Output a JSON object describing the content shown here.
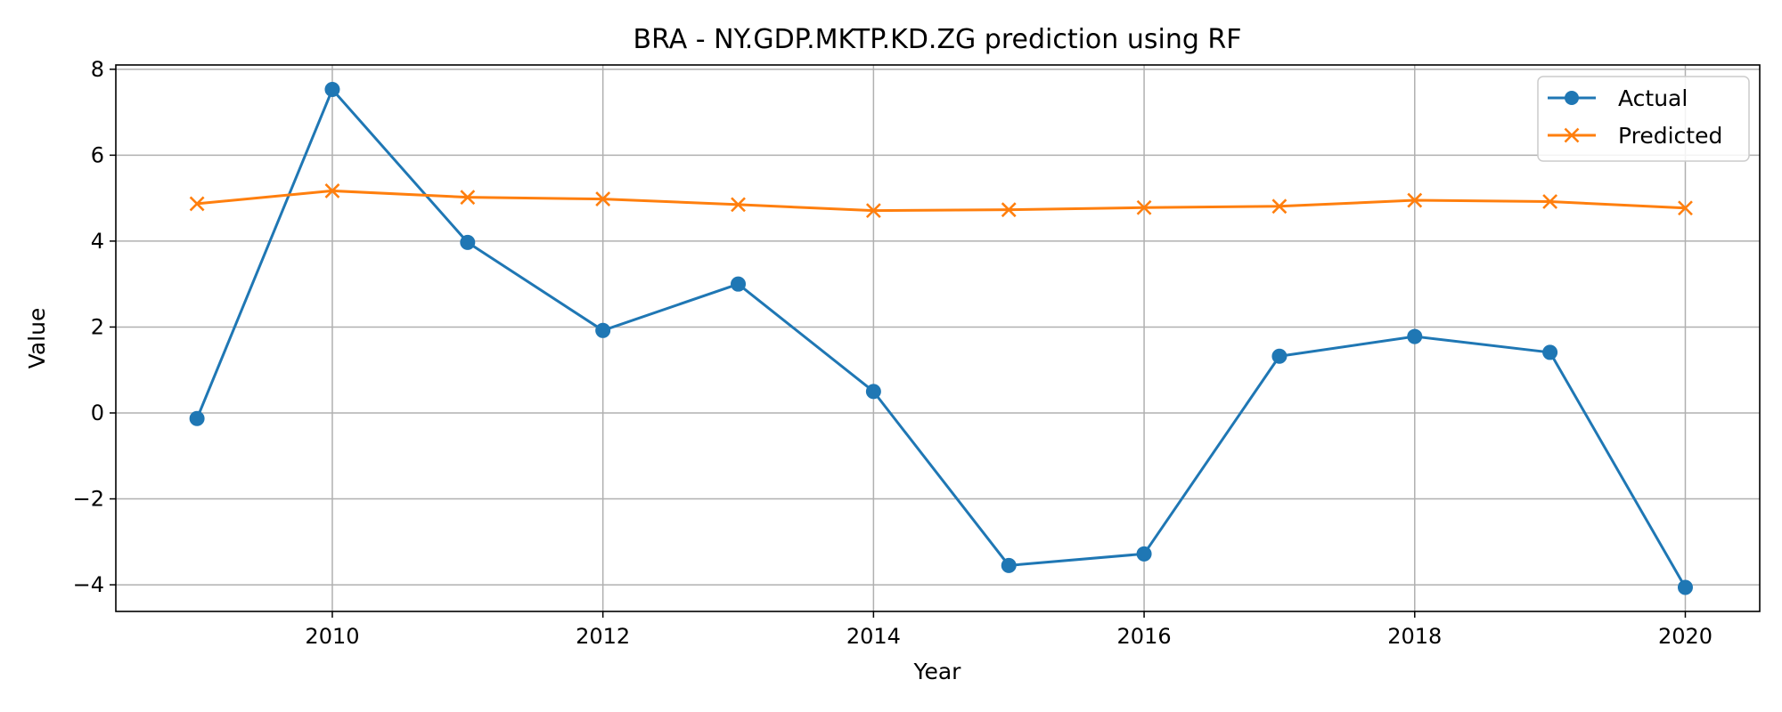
{
  "chart_data": {
    "type": "line",
    "title": "BRA - NY.GDP.MKTP.KD.ZG prediction using RF",
    "xlabel": "Year",
    "ylabel": "Value",
    "x": [
      2009,
      2010,
      2011,
      2012,
      2013,
      2014,
      2015,
      2016,
      2017,
      2018,
      2019,
      2020
    ],
    "xlim": [
      2008.4,
      2020.55
    ],
    "ylim": [
      -4.62,
      8.1
    ],
    "x_ticks": [
      2010,
      2012,
      2014,
      2016,
      2018,
      2020
    ],
    "y_ticks": [
      -4,
      -2,
      0,
      2,
      4,
      6,
      8
    ],
    "x_tick_labels": [
      "2010",
      "2012",
      "2014",
      "2016",
      "2018",
      "2020"
    ],
    "y_tick_labels": [
      "−4",
      "−2",
      "0",
      "2",
      "4",
      "6",
      "8"
    ],
    "grid": true,
    "legend_position": "top-right",
    "series": [
      {
        "name": "Actual",
        "color": "#1f77b4",
        "marker": "circle",
        "values": [
          -0.13,
          7.53,
          3.97,
          1.92,
          3.0,
          0.5,
          -3.55,
          -3.28,
          1.32,
          1.78,
          1.41,
          -4.06
        ]
      },
      {
        "name": "Predicted",
        "color": "#ff7f0e",
        "marker": "x",
        "values": [
          4.87,
          5.17,
          5.02,
          4.98,
          4.85,
          4.71,
          4.73,
          4.78,
          4.81,
          4.95,
          4.92,
          4.77
        ]
      }
    ]
  }
}
